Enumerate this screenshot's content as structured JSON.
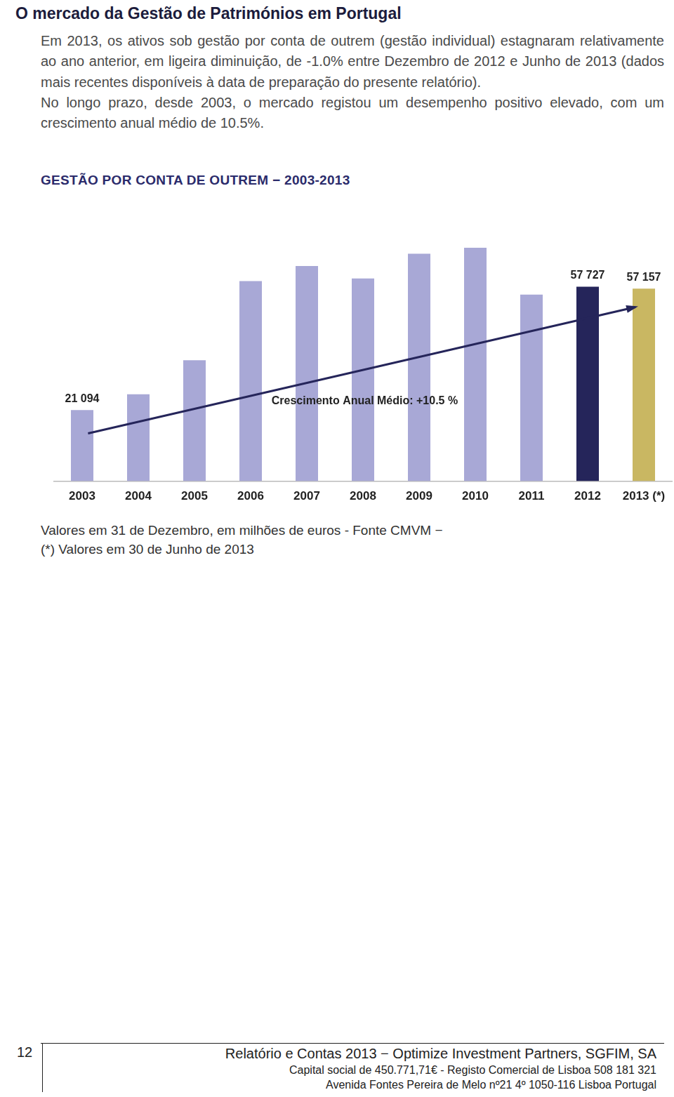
{
  "page": {
    "title": "O mercado da Gestão de Patrimónios em Portugal",
    "paragraphs": [
      "Em 2013, os ativos sob gestão por conta de outrem (gestão individual) estagnaram relativamente ao ano anterior, em ligeira diminuição, de -1.0% entre Dezembro de 2012 e Junho de 2013 (dados mais recentes disponíveis à data de preparação do presente relatório).",
      "No longo prazo, desde 2003, o mercado registou um desempenho positivo elevado, com um crescimento anual médio de 10.5%."
    ],
    "notes": [
      "Valores em 31 de Dezembro, em milhões de euros - Fonte CMVM −",
      "(*) Valores em 30 de Junho de 2013"
    ],
    "footer": {
      "page_number": "12",
      "lines": [
        "Relatório e Contas 2013 − Optimize Investment Partners, SGFIM, SA",
        "Capital social de 450.771,71€ - Registo Comercial de Lisboa 508 181 321",
        "Avenida Fontes Pereira de Melo nº21 4º 1050-116 Lisboa Portugal"
      ]
    }
  },
  "chart_data": {
    "type": "bar",
    "title": "GESTÃO POR CONTA DE OUTREM − 2003-2013",
    "categories": [
      "2003",
      "2004",
      "2005",
      "2006",
      "2007",
      "2008",
      "2009",
      "2010",
      "2011",
      "2012",
      "2013 (*)"
    ],
    "values": [
      21094,
      25800,
      35900,
      59400,
      63900,
      60200,
      67500,
      69300,
      55400,
      57727,
      57157
    ],
    "value_labels": [
      "21 094",
      null,
      null,
      null,
      null,
      null,
      null,
      null,
      null,
      "57 727",
      "57 157"
    ],
    "data_labels": true,
    "colors": [
      "#a8a8d6",
      "#a8a8d6",
      "#a8a8d6",
      "#a8a8d6",
      "#a8a8d6",
      "#a8a8d6",
      "#a8a8d6",
      "#a8a8d6",
      "#a8a8d6",
      "#25255a",
      "#c9b762"
    ],
    "annotations": [
      "Crescimento Anual Médio: +10.5 %"
    ],
    "ylim": [
      0,
      72000
    ],
    "tick_labels": "x",
    "grid": false
  }
}
